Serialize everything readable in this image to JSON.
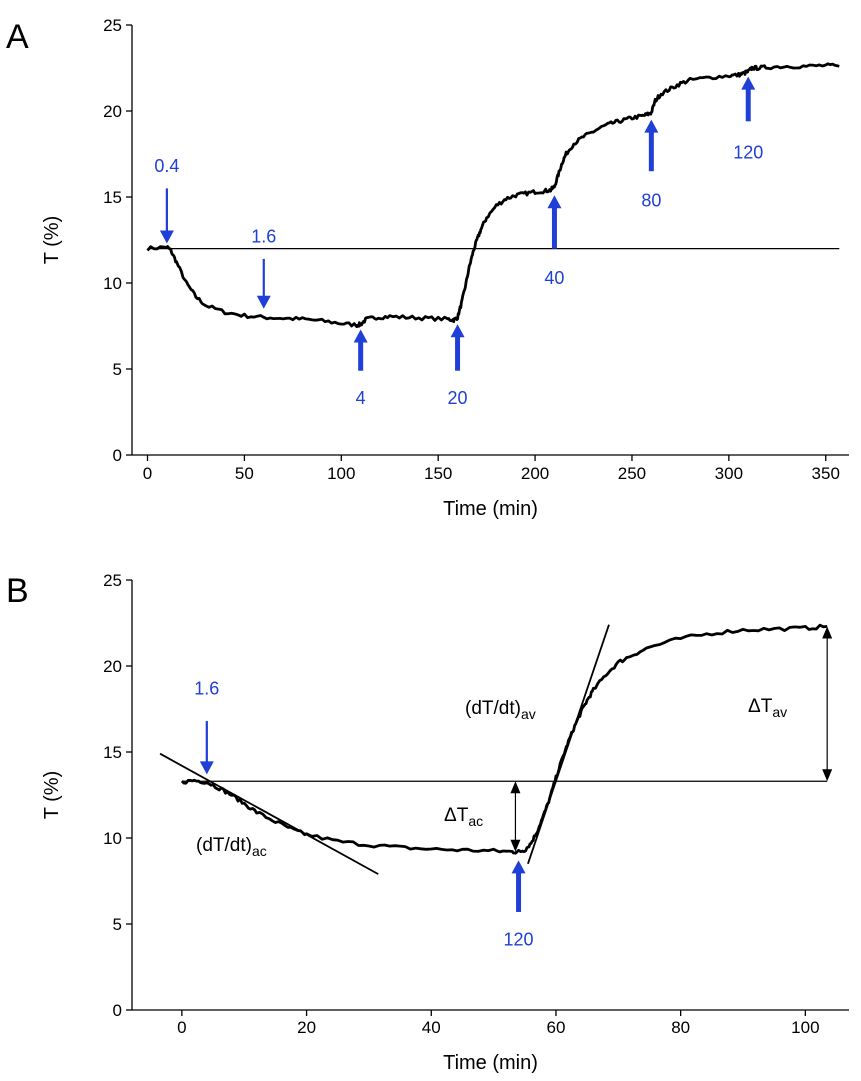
{
  "chart_data": [
    {
      "panel": "A",
      "type": "line",
      "xlabel": "Time (min)",
      "ylabel": "T (%)",
      "xlim": [
        -8,
        362
      ],
      "ylim": [
        0,
        25
      ],
      "xticks": [
        0,
        50,
        100,
        150,
        200,
        250,
        300,
        350
      ],
      "yticks": [
        0,
        5,
        10,
        15,
        20,
        25
      ],
      "grid": false,
      "baseline": {
        "y": 12,
        "x": [
          0,
          357
        ]
      },
      "series": [
        {
          "x": [
            0,
            10,
            12,
            15,
            20,
            25,
            30,
            40,
            50,
            60,
            70,
            80,
            90,
            100,
            108,
            110,
            113,
            118,
            125,
            135,
            145,
            155,
            158,
            160,
            162,
            164,
            166,
            168,
            170,
            172,
            175,
            180,
            185,
            190,
            195,
            200,
            205,
            208,
            210,
            212,
            214,
            216,
            220,
            225,
            230,
            235,
            240,
            245,
            250,
            255,
            258,
            260,
            262,
            265,
            270,
            275,
            280,
            290,
            300,
            305,
            308,
            310,
            312,
            315,
            320,
            330,
            340,
            350,
            357
          ],
          "y": [
            12.0,
            12.1,
            11.9,
            11.2,
            10.0,
            9.2,
            8.7,
            8.3,
            8.1,
            8.0,
            7.95,
            7.9,
            7.8,
            7.65,
            7.55,
            7.6,
            7.9,
            8.0,
            8.05,
            8.0,
            7.95,
            7.9,
            7.85,
            8.0,
            8.8,
            9.8,
            10.9,
            11.8,
            12.5,
            13.1,
            13.8,
            14.5,
            14.9,
            15.1,
            15.2,
            15.3,
            15.35,
            15.4,
            15.6,
            16.3,
            17.0,
            17.5,
            18.1,
            18.5,
            18.8,
            19.1,
            19.3,
            19.45,
            19.6,
            19.7,
            19.8,
            19.9,
            20.6,
            21.0,
            21.3,
            21.6,
            21.8,
            21.95,
            22.05,
            22.1,
            22.2,
            22.3,
            22.5,
            22.5,
            22.55,
            22.6,
            22.6,
            22.65,
            22.6
          ]
        }
      ],
      "annotations": [
        {
          "label": "0.4",
          "x": 10,
          "dir": "down",
          "style": "thin",
          "tip_y": 12.3,
          "tail_y": 15.5,
          "label_y": 16.8
        },
        {
          "label": "1.6",
          "x": 60,
          "dir": "down",
          "style": "thin",
          "tip_y": 8.5,
          "tail_y": 11.4,
          "label_y": 12.7
        },
        {
          "label": "4",
          "x": 110,
          "dir": "up",
          "style": "thick",
          "tip_y": 7.3,
          "tail_y": 4.9,
          "label_y": 3.3
        },
        {
          "label": "20",
          "x": 160,
          "dir": "up",
          "style": "thick",
          "tip_y": 7.6,
          "tail_y": 4.9,
          "label_y": 3.3
        },
        {
          "label": "40",
          "x": 210,
          "dir": "up",
          "style": "thick",
          "tip_y": 15.1,
          "tail_y": 12.0,
          "label_y": 10.3
        },
        {
          "label": "80",
          "x": 260,
          "dir": "up",
          "style": "thick",
          "tip_y": 19.5,
          "tail_y": 16.5,
          "label_y": 14.8
        },
        {
          "label": "120",
          "x": 310,
          "dir": "up",
          "style": "thick",
          "tip_y": 22.0,
          "tail_y": 19.4,
          "label_y": 17.6
        }
      ]
    },
    {
      "panel": "B",
      "type": "line",
      "xlabel": "Time (min)",
      "ylabel": "T (%)",
      "xlim": [
        -8,
        107
      ],
      "ylim": [
        0,
        25
      ],
      "xticks": [
        0,
        20,
        40,
        60,
        80,
        100
      ],
      "yticks": [
        0,
        5,
        10,
        15,
        20,
        25
      ],
      "grid": false,
      "baseline": {
        "y": 13.3,
        "x": [
          0,
          103.5
        ]
      },
      "series": [
        {
          "x": [
            0,
            2,
            4,
            6,
            8,
            10,
            12,
            15,
            18,
            20,
            25,
            30,
            35,
            40,
            45,
            50,
            53,
            54,
            55,
            56,
            57,
            58,
            59,
            60,
            61,
            62,
            63,
            64,
            65,
            66,
            68,
            70,
            72,
            75,
            80,
            85,
            90,
            95,
            100,
            103.5
          ],
          "y": [
            13.25,
            13.35,
            13.25,
            12.9,
            12.5,
            12.0,
            11.5,
            10.95,
            10.45,
            10.2,
            9.8,
            9.6,
            9.45,
            9.35,
            9.3,
            9.25,
            9.2,
            9.2,
            9.3,
            9.7,
            10.4,
            11.3,
            12.3,
            13.5,
            14.6,
            15.6,
            16.5,
            17.3,
            18.0,
            18.6,
            19.5,
            20.2,
            20.6,
            21.1,
            21.6,
            21.9,
            22.1,
            22.15,
            22.2,
            22.3
          ]
        }
      ],
      "tangent_lines": [
        {
          "label": "(dT/dt)ac",
          "x": [
            -3.5,
            31.5
          ],
          "y": [
            14.9,
            7.9
          ]
        },
        {
          "label": "(dT/dt)av",
          "x": [
            55.5,
            68.5
          ],
          "y": [
            8.5,
            22.4
          ]
        }
      ],
      "annotations": [
        {
          "label": "1.6",
          "x": 4,
          "dir": "down",
          "style": "thin",
          "tip_y": 13.7,
          "tail_y": 16.8,
          "label_y": 18.7
        },
        {
          "label": "120",
          "x": 54,
          "dir": "up",
          "style": "thick",
          "tip_y": 8.7,
          "tail_y": 5.7,
          "label_y": 4.1
        }
      ],
      "deltas": [
        {
          "label": "ΔTac",
          "x": 53.5,
          "from": 9.2,
          "to": 13.3
        },
        {
          "label": "ΔTav",
          "x": 103.5,
          "from": 13.3,
          "to": 22.3
        }
      ]
    }
  ],
  "panel_labels": [
    "A",
    "B"
  ],
  "texts": {
    "dTdt_ac_main": "(dT/dt)",
    "dTdt_ac_sub": "ac",
    "dTdt_av_main": "(dT/dt)",
    "dTdt_av_sub": "av",
    "delta_ac_main": "ΔT",
    "delta_ac_sub": "ac",
    "delta_av_main": "ΔT",
    "delta_av_sub": "av"
  },
  "colors": {
    "annotation": "#1f3fd6",
    "trace": "#000000"
  }
}
